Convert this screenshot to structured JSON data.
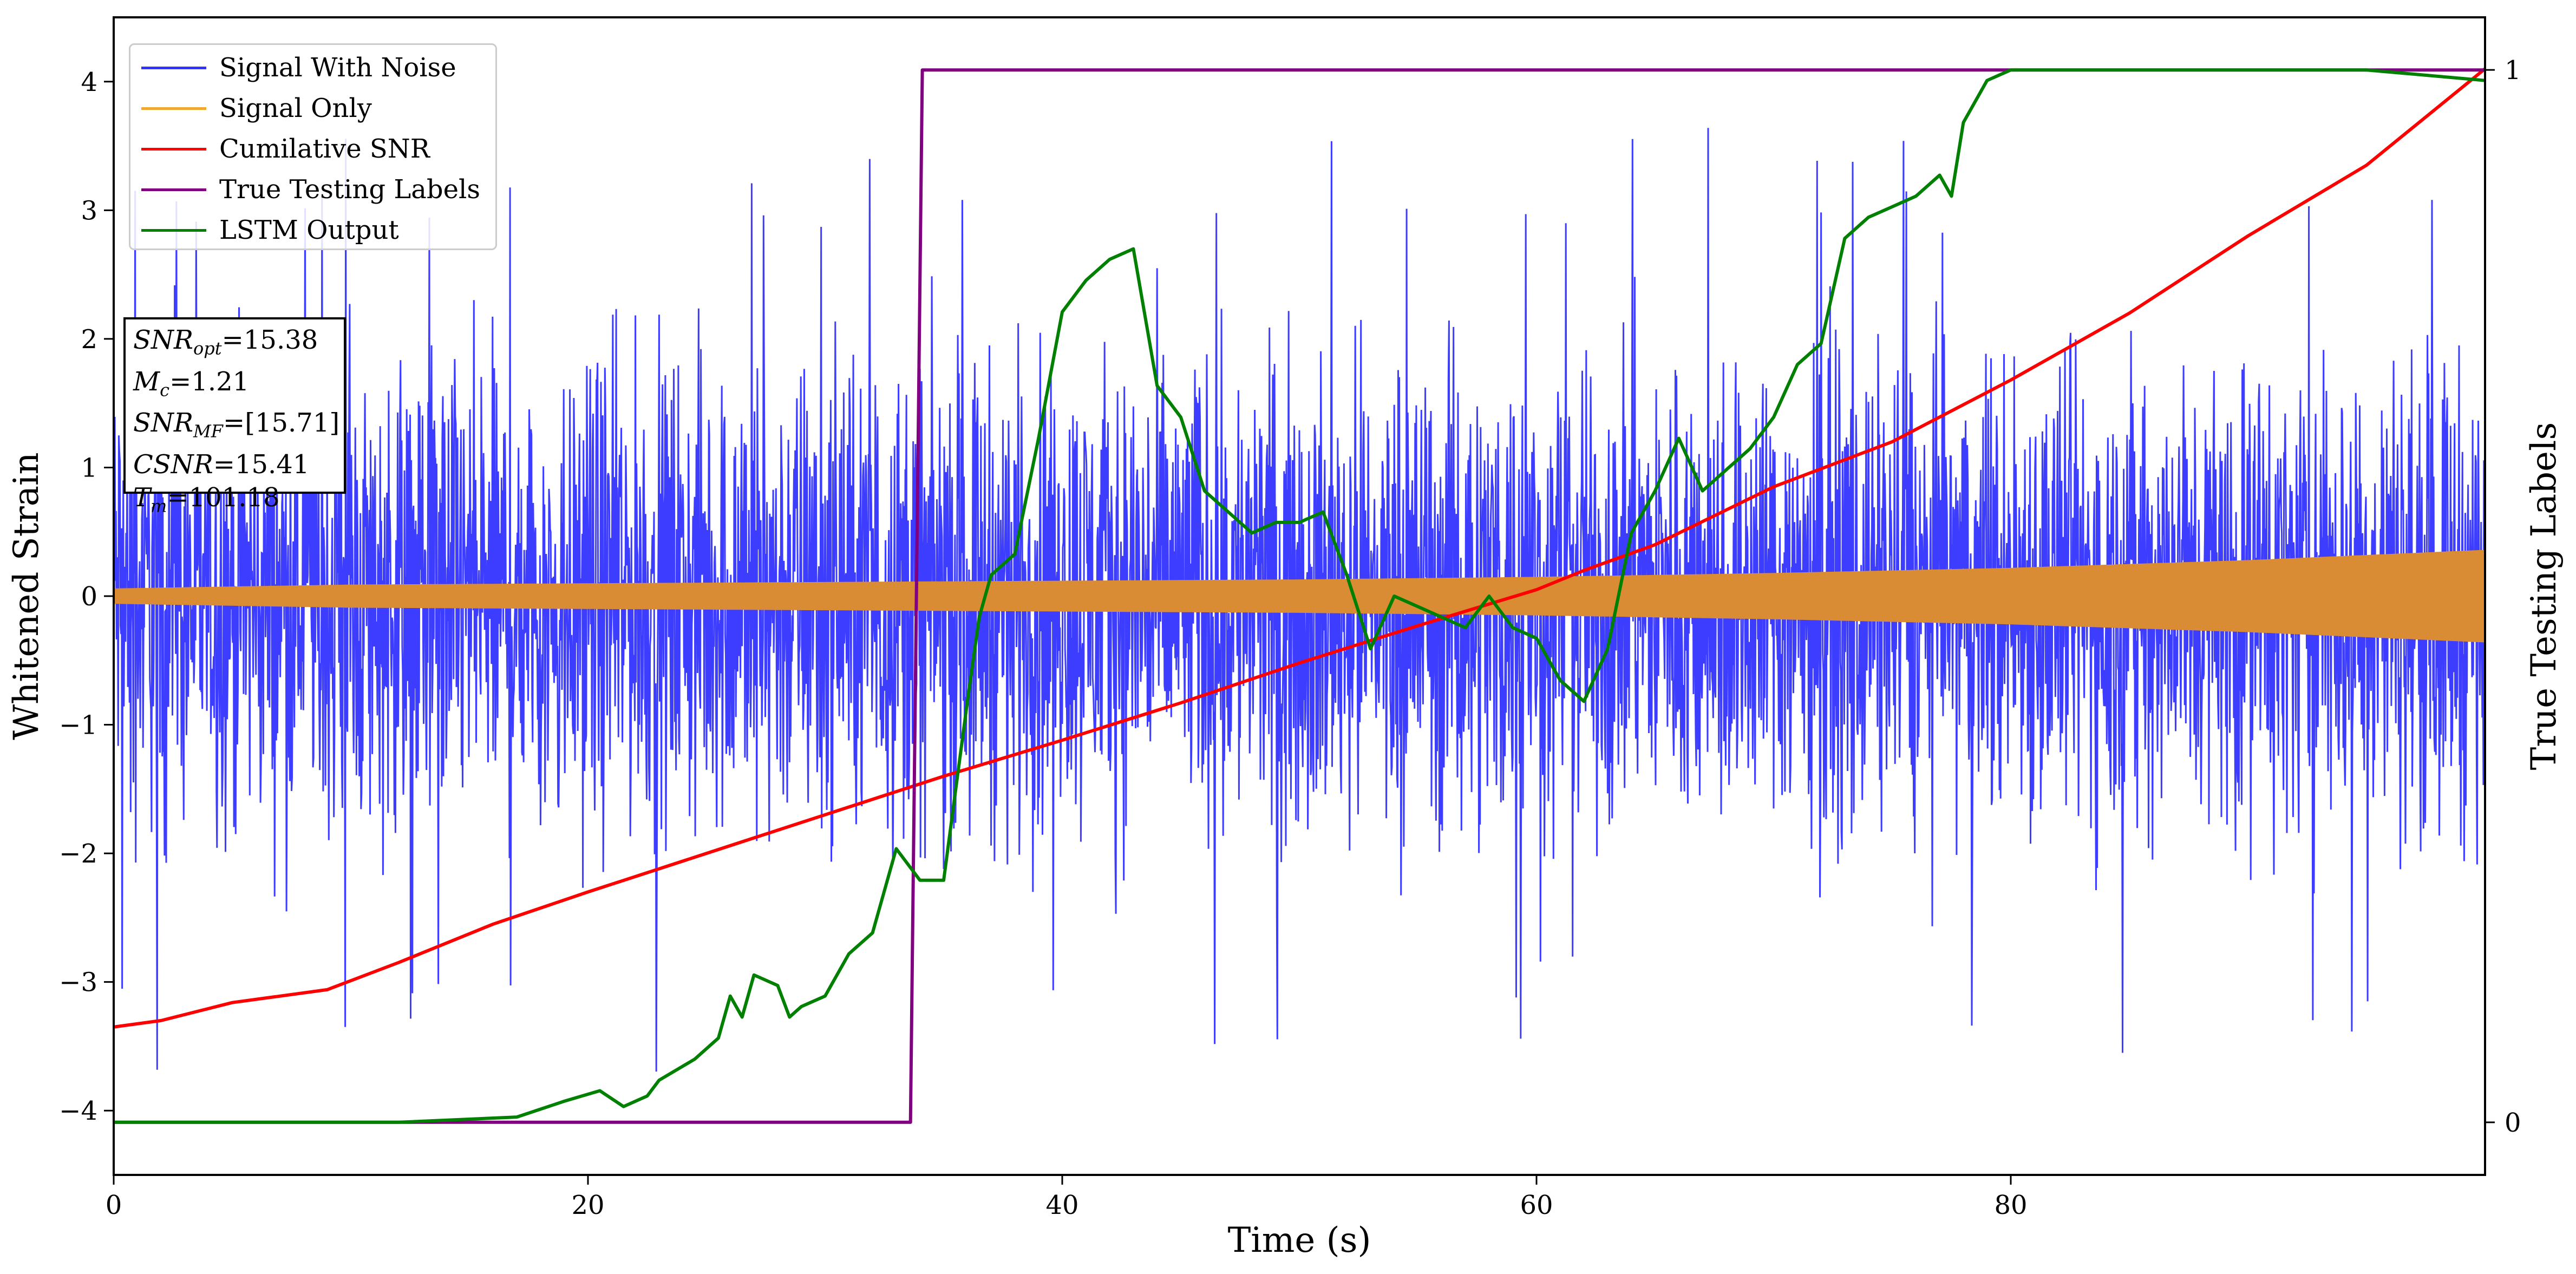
{
  "chart_data": {
    "type": "line",
    "xlabel": "Time (s)",
    "ylabel": "Whitened Strain",
    "y2label": "True Testing Labels",
    "xlim": [
      0,
      100
    ],
    "ylim": [
      -4.5,
      4.5
    ],
    "y2lim": [
      -0.05,
      1.05
    ],
    "xticks": [
      0,
      20,
      40,
      60,
      80
    ],
    "yticks": [
      -4,
      -3,
      -2,
      -1,
      0,
      1,
      2,
      3,
      4
    ],
    "y2ticks": [
      0,
      1
    ],
    "legend_position": "top-left",
    "colors": {
      "signal_with_noise": "#3333ff",
      "signal_only": "#d98c33",
      "cumulative_snr": "#ff0000",
      "true_labels": "#800080",
      "lstm": "#008000"
    },
    "legend": [
      "Signal With Noise",
      "Signal Only",
      "Cumilative SNR",
      "True Testing Labels",
      "LSTM Output"
    ],
    "annotation": {
      "snr_opt": "15.38",
      "mc": "1.21",
      "snr_mf": "[15.71]",
      "csnr": "15.41",
      "tm": "101.18"
    },
    "series": [
      {
        "name": "Signal With Noise",
        "axis": "left",
        "style": "dense noise band",
        "typical_amplitude": 1.8,
        "max_spike": 3.7,
        "min_spike": -4.1
      },
      {
        "name": "Signal Only",
        "axis": "left",
        "style": "chirp envelope",
        "envelope_x": [
          0,
          10,
          20,
          30,
          40,
          50,
          60,
          70,
          80,
          90,
          100
        ],
        "envelope_y": [
          0.06,
          0.09,
          0.1,
          0.11,
          0.12,
          0.13,
          0.15,
          0.18,
          0.22,
          0.28,
          0.36
        ]
      },
      {
        "name": "Cumilative SNR",
        "axis": "left",
        "x": [
          0,
          2,
          5,
          9,
          12,
          16,
          20,
          25,
          30,
          35,
          40,
          45,
          50,
          55,
          60,
          62,
          65,
          70,
          75,
          80,
          85,
          90,
          95,
          100
        ],
        "y": [
          -3.35,
          -3.3,
          -3.16,
          -3.06,
          -2.85,
          -2.55,
          -2.3,
          -2.0,
          -1.7,
          -1.4,
          -1.12,
          -0.83,
          -0.52,
          -0.23,
          0.05,
          0.2,
          0.4,
          0.85,
          1.2,
          1.68,
          2.2,
          2.8,
          3.35,
          4.1
        ]
      },
      {
        "name": "True Testing Labels",
        "axis": "right",
        "x": [
          0,
          33.6,
          34.1,
          100
        ],
        "y": [
          0,
          0,
          1,
          1
        ]
      },
      {
        "name": "LSTM Output",
        "axis": "right",
        "x": [
          0,
          12,
          17,
          19,
          20.5,
          21.5,
          22.5,
          23,
          24.5,
          25.5,
          26,
          26.5,
          27,
          28,
          28.5,
          29,
          30,
          31,
          32,
          33,
          34,
          35,
          36,
          36.5,
          37,
          38,
          39,
          40,
          41,
          42,
          43,
          44,
          45,
          46,
          47,
          48,
          49,
          50,
          51,
          52,
          53,
          54,
          55,
          56,
          57,
          58,
          59,
          60,
          61,
          62,
          63,
          64,
          65,
          66,
          67,
          68,
          69,
          70,
          71,
          72,
          73,
          74,
          75,
          76,
          77,
          77.5,
          78,
          79,
          80,
          82,
          85,
          90,
          95,
          100
        ],
        "y": [
          0,
          0,
          0.005,
          0.02,
          0.03,
          0.015,
          0.025,
          0.04,
          0.06,
          0.08,
          0.12,
          0.1,
          0.14,
          0.13,
          0.1,
          0.11,
          0.12,
          0.16,
          0.18,
          0.26,
          0.23,
          0.23,
          0.4,
          0.48,
          0.52,
          0.54,
          0.65,
          0.77,
          0.8,
          0.82,
          0.83,
          0.7,
          0.67,
          0.6,
          0.58,
          0.56,
          0.57,
          0.57,
          0.58,
          0.52,
          0.45,
          0.5,
          0.49,
          0.48,
          0.47,
          0.5,
          0.47,
          0.46,
          0.42,
          0.4,
          0.45,
          0.56,
          0.6,
          0.65,
          0.6,
          0.62,
          0.64,
          0.67,
          0.72,
          0.74,
          0.84,
          0.86,
          0.87,
          0.88,
          0.9,
          0.88,
          0.95,
          0.99,
          1.0,
          1.0,
          1.0,
          1.0,
          1.0,
          0.99
        ]
      }
    ]
  }
}
